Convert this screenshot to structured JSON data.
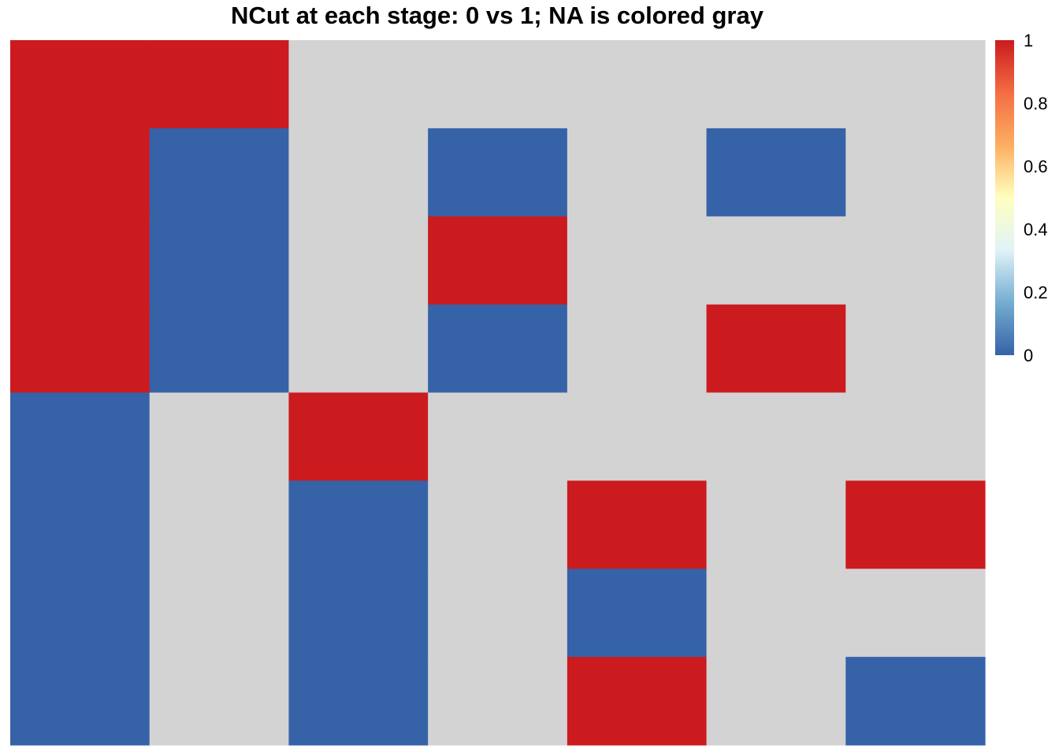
{
  "chart_data": {
    "type": "heatmap",
    "title": "NCut at each stage: 0 vs 1; NA is colored gray",
    "n_columns": 7,
    "n_rows": 8,
    "values_by_row": [
      [
        1,
        1,
        null,
        null,
        null,
        null,
        null
      ],
      [
        1,
        0,
        null,
        0,
        null,
        0,
        null
      ],
      [
        1,
        0,
        null,
        1,
        null,
        null,
        null
      ],
      [
        1,
        0,
        null,
        0,
        null,
        1,
        null
      ],
      [
        0,
        null,
        1,
        null,
        null,
        null,
        null
      ],
      [
        0,
        null,
        0,
        null,
        1,
        null,
        1
      ],
      [
        0,
        null,
        0,
        null,
        0,
        null,
        null
      ],
      [
        0,
        null,
        0,
        null,
        1,
        null,
        0
      ]
    ],
    "na_color": "#d3d3d3",
    "colorscale": {
      "min": 0,
      "max": 1,
      "stops": [
        "#3662a8",
        "#74add1",
        "#e0f3f8",
        "#ffffbf",
        "#fdae61",
        "#f46d43",
        "#cb1b1e"
      ],
      "ticks": [
        {
          "value": 0,
          "label": "0"
        },
        {
          "value": 0.2,
          "label": "0.2"
        },
        {
          "value": 0.4,
          "label": "0.4"
        },
        {
          "value": 0.6,
          "label": "0.6"
        },
        {
          "value": 0.8,
          "label": "0.8"
        },
        {
          "value": 1,
          "label": "1"
        }
      ]
    },
    "xlabel": "",
    "ylabel": "",
    "legend_position": "right"
  }
}
